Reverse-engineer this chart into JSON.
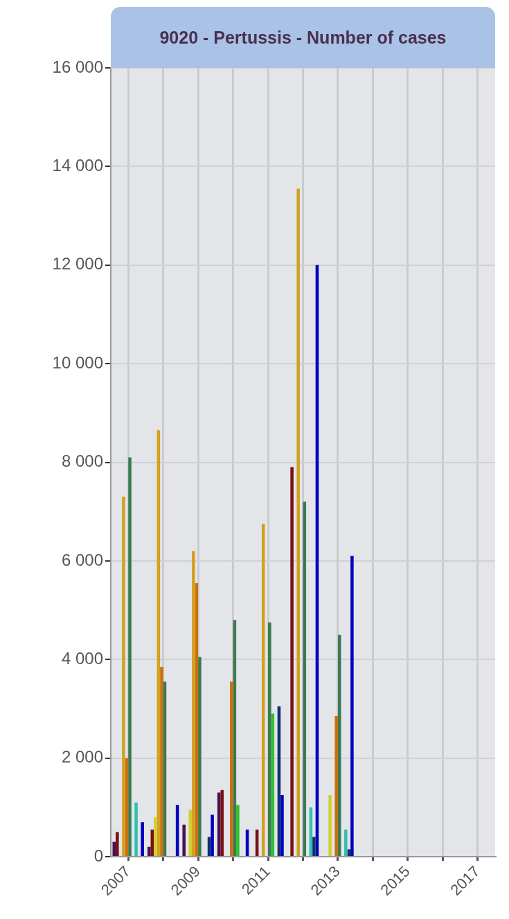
{
  "chart_data": {
    "type": "bar",
    "title": "9020 - Pertussis - Number of cases",
    "categories": [
      "2007",
      null,
      "2009",
      null,
      "2011",
      null,
      "2013",
      null,
      "2015",
      null,
      "2017"
    ],
    "series": [
      {
        "color": "#4b1050",
        "values": [
          300,
          200,
          650,
          1300,
          null,
          null,
          null,
          null,
          null,
          null,
          null
        ]
      },
      {
        "color": "#7a1010",
        "values": [
          500,
          550,
          null,
          1350,
          550,
          7900,
          null,
          null,
          null,
          null,
          null
        ]
      },
      {
        "color": "#d0d030",
        "values": [
          null,
          800,
          950,
          null,
          null,
          null,
          1250,
          null,
          null,
          null,
          null
        ]
      },
      {
        "color": "#d4a020",
        "values": [
          7300,
          8650,
          6200,
          null,
          6750,
          13550,
          null,
          null,
          null,
          null,
          null
        ]
      },
      {
        "color": "#c87010",
        "values": [
          2000,
          3850,
          5550,
          3550,
          null,
          null,
          2850,
          null,
          null,
          null,
          null
        ]
      },
      {
        "color": "#3a7a50",
        "values": [
          8100,
          3550,
          4050,
          4800,
          4750,
          7200,
          4500,
          null,
          null,
          null,
          null
        ]
      },
      {
        "color": "#30c030",
        "values": [
          null,
          null,
          null,
          1050,
          2900,
          null,
          null,
          null,
          null,
          null,
          null
        ]
      },
      {
        "color": "#30c0b0",
        "values": [
          1100,
          null,
          null,
          null,
          null,
          1000,
          550,
          null,
          null,
          null,
          null
        ]
      },
      {
        "color": "#103070",
        "values": [
          null,
          null,
          400,
          null,
          3050,
          400,
          150,
          null,
          null,
          null,
          null
        ]
      },
      {
        "color": "#0000c0",
        "values": [
          700,
          1050,
          850,
          550,
          1250,
          12000,
          6100,
          null,
          null,
          null,
          null
        ]
      }
    ],
    "ylim": [
      0,
      16000
    ],
    "yticks": [
      {
        "value": 0,
        "label": "0"
      },
      {
        "value": 2000,
        "label": "2 000"
      },
      {
        "value": 4000,
        "label": "4 000"
      },
      {
        "value": 6000,
        "label": "6 000"
      },
      {
        "value": 8000,
        "label": "8 000"
      },
      {
        "value": 10000,
        "label": "10 000"
      },
      {
        "value": 12000,
        "label": "12 000"
      },
      {
        "value": 14000,
        "label": "14 000"
      },
      {
        "value": 16000,
        "label": "16 000"
      }
    ],
    "grid": true,
    "legend": false
  }
}
